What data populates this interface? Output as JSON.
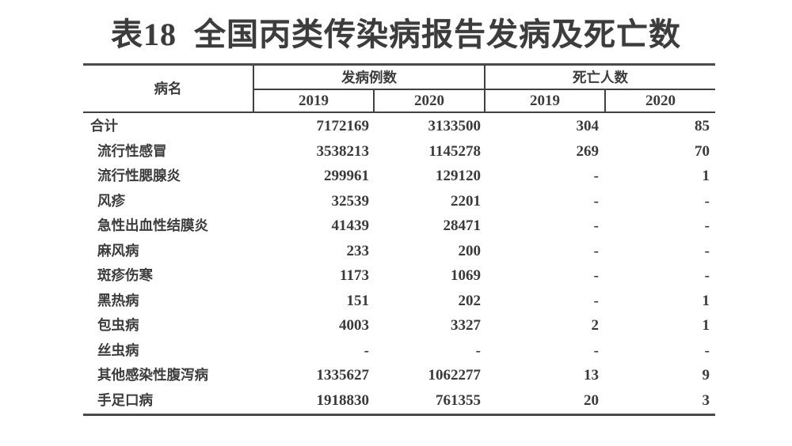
{
  "title": "表18  全国丙类传染病报告发病及死亡数",
  "table": {
    "headers": {
      "disease": "病名",
      "cases_group": "发病例数",
      "deaths_group": "死亡人数",
      "cases_2019": "2019",
      "cases_2020": "2020",
      "deaths_2019": "2019",
      "deaths_2020": "2020"
    },
    "rows": [
      {
        "name": "合计",
        "cases_2019": "7172169",
        "cases_2020": "3133500",
        "deaths_2019": "304",
        "deaths_2020": "85"
      },
      {
        "name": "流行性感冒",
        "cases_2019": "3538213",
        "cases_2020": "1145278",
        "deaths_2019": "269",
        "deaths_2020": "70"
      },
      {
        "name": "流行性腮腺炎",
        "cases_2019": "299961",
        "cases_2020": "129120",
        "deaths_2019": "-",
        "deaths_2020": "1"
      },
      {
        "name": "风疹",
        "cases_2019": "32539",
        "cases_2020": "2201",
        "deaths_2019": "-",
        "deaths_2020": "-"
      },
      {
        "name": "急性出血性结膜炎",
        "cases_2019": "41439",
        "cases_2020": "28471",
        "deaths_2019": "-",
        "deaths_2020": "-"
      },
      {
        "name": "麻风病",
        "cases_2019": "233",
        "cases_2020": "200",
        "deaths_2019": "-",
        "deaths_2020": "-"
      },
      {
        "name": "斑疹伤寒",
        "cases_2019": "1173",
        "cases_2020": "1069",
        "deaths_2019": "-",
        "deaths_2020": "-"
      },
      {
        "name": "黑热病",
        "cases_2019": "151",
        "cases_2020": "202",
        "deaths_2019": "-",
        "deaths_2020": "1"
      },
      {
        "name": "包虫病",
        "cases_2019": "4003",
        "cases_2020": "3327",
        "deaths_2019": "2",
        "deaths_2020": "1"
      },
      {
        "name": "丝虫病",
        "cases_2019": "-",
        "cases_2020": "-",
        "deaths_2019": "-",
        "deaths_2020": "-"
      },
      {
        "name": "其他感染性腹泻病",
        "cases_2019": "1335627",
        "cases_2020": "1062277",
        "deaths_2019": "13",
        "deaths_2020": "9"
      },
      {
        "name": "手足口病",
        "cases_2019": "1918830",
        "cases_2020": "761355",
        "deaths_2019": "20",
        "deaths_2020": "3"
      }
    ]
  },
  "colors": {
    "text": "#3b3b3b",
    "border": "#414141",
    "border_heavy": "#4a4a4a",
    "background": "#ffffff"
  }
}
